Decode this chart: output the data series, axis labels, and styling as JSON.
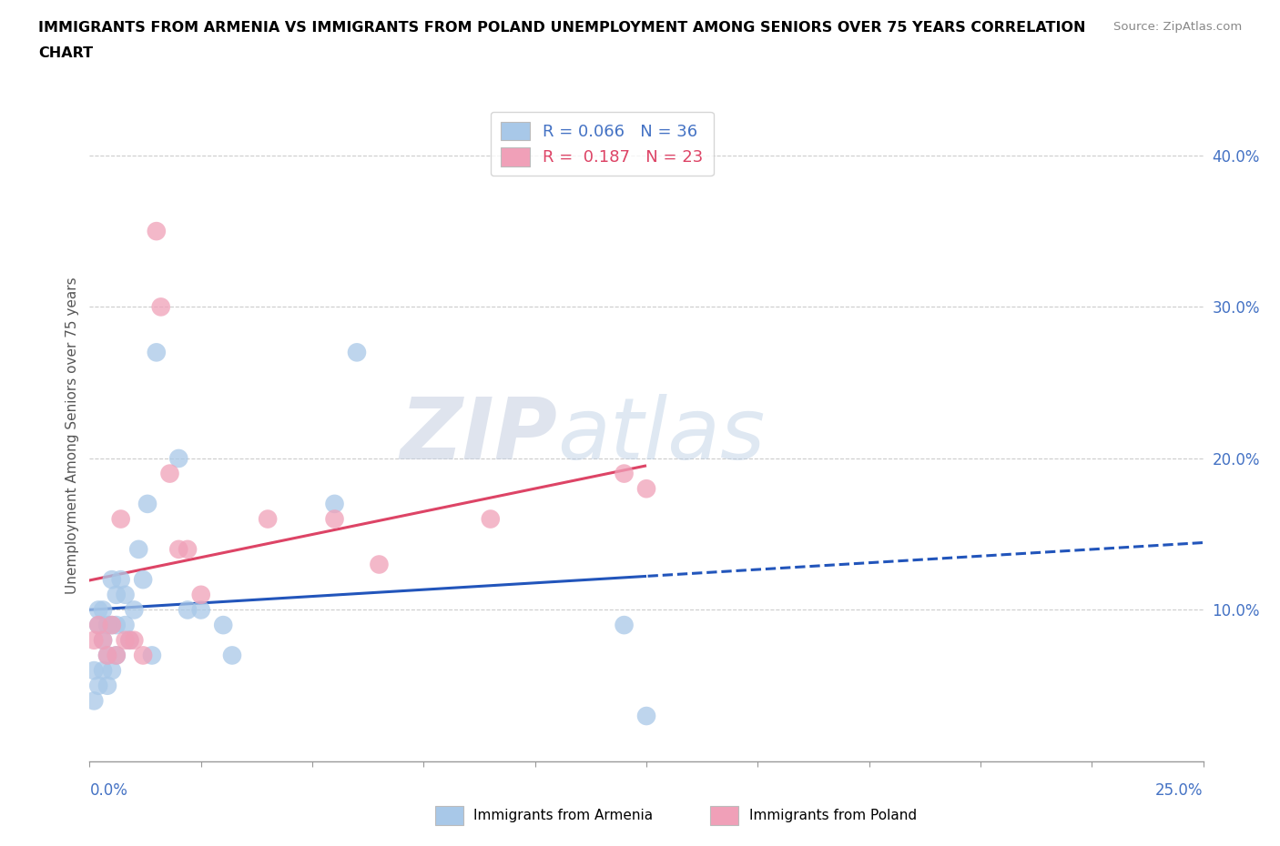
{
  "title_line1": "IMMIGRANTS FROM ARMENIA VS IMMIGRANTS FROM POLAND UNEMPLOYMENT AMONG SENIORS OVER 75 YEARS CORRELATION",
  "title_line2": "CHART",
  "source": "Source: ZipAtlas.com",
  "ylabel_label": "Unemployment Among Seniors over 75 years",
  "xlim": [
    0.0,
    0.25
  ],
  "ylim": [
    0.0,
    0.43
  ],
  "ytick_vals": [
    0.1,
    0.2,
    0.3,
    0.4
  ],
  "ytick_labels": [
    "10.0%",
    "20.0%",
    "30.0%",
    "40.0%"
  ],
  "xtick_vals": [
    0.0,
    0.025,
    0.05,
    0.075,
    0.1,
    0.125,
    0.15,
    0.175,
    0.2,
    0.225,
    0.25
  ],
  "armenia_color": "#a8c8e8",
  "poland_color": "#f0a0b8",
  "armenia_line_color": "#2255bb",
  "poland_line_color": "#dd4466",
  "armenia_label": "Immigrants from Armenia",
  "poland_label": "Immigrants from Poland",
  "R_armenia": "0.066",
  "N_armenia": "36",
  "R_poland": "0.187",
  "N_poland": "23",
  "watermark_zip": "ZIP",
  "watermark_atlas": "atlas",
  "armenia_x": [
    0.001,
    0.001,
    0.002,
    0.002,
    0.002,
    0.003,
    0.003,
    0.003,
    0.004,
    0.004,
    0.004,
    0.005,
    0.005,
    0.005,
    0.006,
    0.006,
    0.006,
    0.007,
    0.008,
    0.008,
    0.009,
    0.01,
    0.011,
    0.012,
    0.013,
    0.014,
    0.015,
    0.02,
    0.022,
    0.025,
    0.03,
    0.032,
    0.055,
    0.06,
    0.12,
    0.125
  ],
  "armenia_y": [
    0.04,
    0.06,
    0.05,
    0.09,
    0.1,
    0.06,
    0.08,
    0.1,
    0.05,
    0.07,
    0.09,
    0.06,
    0.09,
    0.12,
    0.07,
    0.09,
    0.11,
    0.12,
    0.09,
    0.11,
    0.08,
    0.1,
    0.14,
    0.12,
    0.17,
    0.07,
    0.27,
    0.2,
    0.1,
    0.1,
    0.09,
    0.07,
    0.17,
    0.27,
    0.09,
    0.03
  ],
  "poland_x": [
    0.001,
    0.002,
    0.003,
    0.004,
    0.005,
    0.006,
    0.007,
    0.008,
    0.009,
    0.01,
    0.012,
    0.015,
    0.016,
    0.018,
    0.02,
    0.022,
    0.025,
    0.04,
    0.055,
    0.065,
    0.09,
    0.12,
    0.125
  ],
  "poland_y": [
    0.08,
    0.09,
    0.08,
    0.07,
    0.09,
    0.07,
    0.16,
    0.08,
    0.08,
    0.08,
    0.07,
    0.35,
    0.3,
    0.19,
    0.14,
    0.14,
    0.11,
    0.16,
    0.16,
    0.13,
    0.16,
    0.19,
    0.18
  ]
}
